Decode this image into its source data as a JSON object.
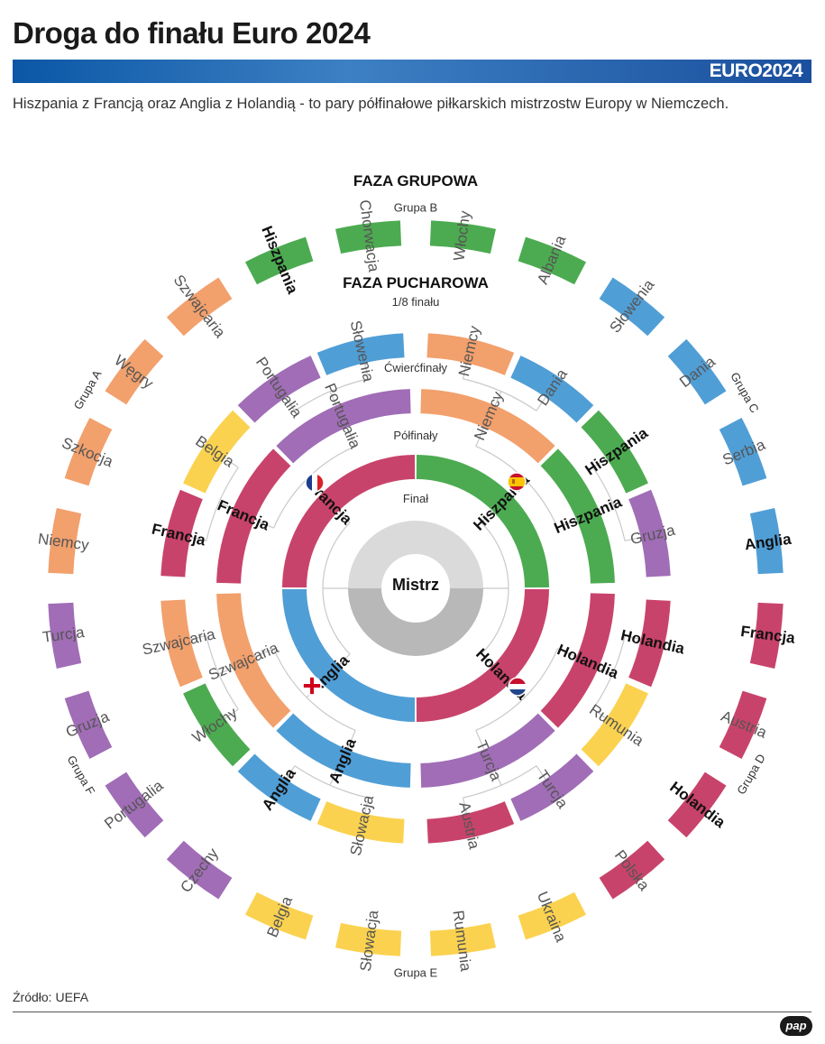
{
  "header": {
    "title": "Droga do finału Euro 2024",
    "logo": "EURO2024",
    "subtitle": "Hiszpania z Francją oraz Anglia z Holandią - to pary półfinałowe piłkarskich mistrzostw Europy w Niemczech."
  },
  "labels": {
    "group_phase": "FAZA GRUPOWA",
    "knockout_phase": "FAZA PUCHAROWA",
    "round16": "1/8 finału",
    "quarterfinals": "Ćwierćfinały",
    "semifinals": "Półfinały",
    "final": "Finał",
    "champion": "Mistrz"
  },
  "colors": {
    "pink": "#c8436b",
    "green": "#4cab51",
    "orange": "#f2a06c",
    "blue": "#509ed6",
    "purple": "#a06db6",
    "yellow": "#fbd24f",
    "gray_light": "#dadada",
    "gray_dark": "#b8b8b8"
  },
  "groups": [
    {
      "label": "Grupa B",
      "teams": [
        {
          "name": "Hiszpania",
          "color": "green",
          "bold": true
        },
        {
          "name": "Chorwacja",
          "color": "green",
          "bold": false
        },
        {
          "name": "Włochy",
          "color": "green",
          "bold": false
        },
        {
          "name": "Albania",
          "color": "green",
          "bold": false
        }
      ]
    },
    {
      "label": "Grupa C",
      "teams": [
        {
          "name": "Słowenia",
          "color": "blue",
          "bold": false
        },
        {
          "name": "Dania",
          "color": "blue",
          "bold": false
        },
        {
          "name": "Serbia",
          "color": "blue",
          "bold": false
        },
        {
          "name": "Anglia",
          "color": "blue",
          "bold": true
        }
      ]
    },
    {
      "label": "Grupa D",
      "teams": [
        {
          "name": "Francja",
          "color": "pink",
          "bold": true
        },
        {
          "name": "Austria",
          "color": "pink",
          "bold": false
        },
        {
          "name": "Holandia",
          "color": "pink",
          "bold": true
        },
        {
          "name": "Polska",
          "color": "pink",
          "bold": false
        }
      ]
    },
    {
      "label": "Grupa E",
      "teams": [
        {
          "name": "Ukraina",
          "color": "yellow",
          "bold": false
        },
        {
          "name": "Rumunia",
          "color": "yellow",
          "bold": false
        },
        {
          "name": "Słowacja",
          "color": "yellow",
          "bold": false
        },
        {
          "name": "Belgia",
          "color": "yellow",
          "bold": false
        }
      ]
    },
    {
      "label": "Grupa F",
      "teams": [
        {
          "name": "Czechy",
          "color": "purple",
          "bold": false
        },
        {
          "name": "Portugalia",
          "color": "purple",
          "bold": false
        },
        {
          "name": "Gruzja",
          "color": "purple",
          "bold": false
        },
        {
          "name": "Turcja",
          "color": "purple",
          "bold": false
        }
      ]
    },
    {
      "label": "Grupa A",
      "teams": [
        {
          "name": "Niemcy",
          "color": "orange",
          "bold": false
        },
        {
          "name": "Szkocja",
          "color": "orange",
          "bold": false
        },
        {
          "name": "Węgry",
          "color": "orange",
          "bold": false
        },
        {
          "name": "Szwajcaria",
          "color": "orange",
          "bold": false
        }
      ]
    }
  ],
  "round16": [
    {
      "name": "Niemcy",
      "color": "orange",
      "bold": false
    },
    {
      "name": "Dania",
      "color": "blue",
      "bold": false
    },
    {
      "name": "Hiszpania",
      "color": "green",
      "bold": true
    },
    {
      "name": "Gruzja",
      "color": "purple",
      "bold": false
    },
    {
      "name": "Holandia",
      "color": "pink",
      "bold": true
    },
    {
      "name": "Rumunia",
      "color": "yellow",
      "bold": false
    },
    {
      "name": "Turcja",
      "color": "purple",
      "bold": false
    },
    {
      "name": "Austria",
      "color": "pink",
      "bold": false
    },
    {
      "name": "Słowacja",
      "color": "yellow",
      "bold": false
    },
    {
      "name": "Anglia",
      "color": "blue",
      "bold": true
    },
    {
      "name": "Włochy",
      "color": "green",
      "bold": false
    },
    {
      "name": "Szwajcaria",
      "color": "orange",
      "bold": false
    },
    {
      "name": "Francja",
      "color": "pink",
      "bold": true
    },
    {
      "name": "Belgia",
      "color": "yellow",
      "bold": false
    },
    {
      "name": "Portugalia",
      "color": "purple",
      "bold": false
    },
    {
      "name": "Słowenia",
      "color": "blue",
      "bold": false
    }
  ],
  "quarterfinals": [
    {
      "name": "Niemcy",
      "color": "orange",
      "bold": false
    },
    {
      "name": "Hiszpania",
      "color": "green",
      "bold": true
    },
    {
      "name": "Holandia",
      "color": "pink",
      "bold": true
    },
    {
      "name": "Turcja",
      "color": "purple",
      "bold": false
    },
    {
      "name": "Anglia",
      "color": "blue",
      "bold": true
    },
    {
      "name": "Szwajcaria",
      "color": "orange",
      "bold": false
    },
    {
      "name": "Francja",
      "color": "pink",
      "bold": true
    },
    {
      "name": "Portugalia",
      "color": "purple",
      "bold": false
    }
  ],
  "semifinals": [
    {
      "name": "Hiszpania",
      "color": "green",
      "bold": true,
      "flag": "spain"
    },
    {
      "name": "Holandia",
      "color": "pink",
      "bold": true,
      "flag": "netherlands"
    },
    {
      "name": "Anglia",
      "color": "blue",
      "bold": true,
      "flag": "england"
    },
    {
      "name": "Francja",
      "color": "pink",
      "bold": true,
      "flag": "france"
    }
  ],
  "footer": {
    "source": "Źródło: UEFA",
    "brand": "pap"
  }
}
